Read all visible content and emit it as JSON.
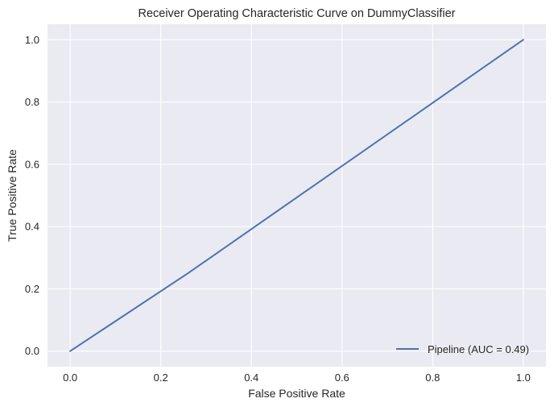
{
  "chart_data": {
    "type": "line",
    "title": "Receiver Operating Characteristic Curve on DummyClassifier",
    "xlabel": "False Positive Rate",
    "ylabel": "True Positive Rate",
    "xlim": [
      -0.05,
      1.05
    ],
    "ylim": [
      -0.05,
      1.05
    ],
    "xticks": [
      0.0,
      0.2,
      0.4,
      0.6,
      0.8,
      1.0
    ],
    "xtick_labels": [
      "0.0",
      "0.2",
      "0.4",
      "0.6",
      "0.8",
      "1.0"
    ],
    "yticks": [
      0.0,
      0.2,
      0.4,
      0.6,
      0.8,
      1.0
    ],
    "ytick_labels": [
      "0.0",
      "0.2",
      "0.4",
      "0.6",
      "0.8",
      "1.0"
    ],
    "grid": true,
    "legend_position": "lower right",
    "background_color": "#eaeaf2",
    "grid_color": "#ffffff",
    "series": [
      {
        "name": "Pipeline (AUC = 0.49)",
        "color": "#4c72b0",
        "x": [
          0.0,
          0.26,
          1.0
        ],
        "y": [
          0.0,
          0.25,
          1.0
        ]
      }
    ]
  }
}
